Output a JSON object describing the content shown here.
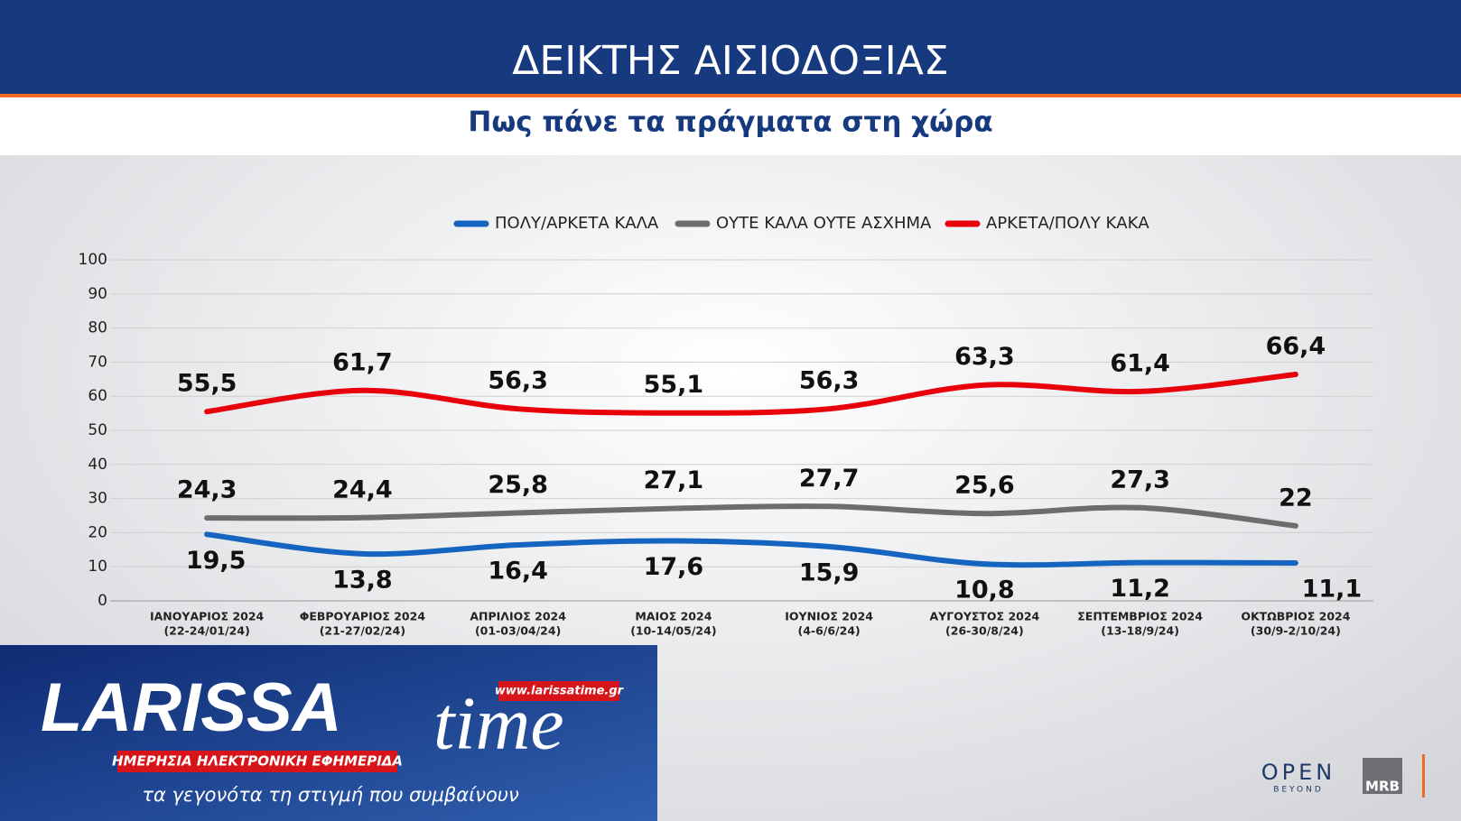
{
  "chart_data": {
    "type": "line",
    "title": "ΔΕΙΚΤΗΣ ΑΙΣΙΟΔΟΞΙΑΣ",
    "subtitle": "Πως πάνε τα πράγματα στη χώρα",
    "categories": [
      "ΙΑΝΟΥΑΡΙΟΣ 2024",
      "ΦΕΒΡΟΥΑΡΙΟΣ 2024",
      "ΑΠΡΙΛΙΟΣ 2024",
      "ΜΑΙΟΣ 2024",
      "ΙΟΥΝΙΟΣ 2024",
      "ΑΥΓΟΥΣΤΟΣ 2024",
      "ΣΕΠΤΕΜΒΡΙΟΣ 2024",
      "ΟΚΤΩΒΡΙΟΣ 2024"
    ],
    "category_notes": [
      "(22-24/01/24)",
      "(21-27/02/24)",
      "(01-03/04/24)",
      "(10-14/05/24)",
      "(4-6/6/24)",
      "(26-30/8/24)",
      "(13-18/9/24)",
      "(30/9-2/10/24)"
    ],
    "series": [
      {
        "name": "ΠΟΛΥ/ΑΡΚΕΤΑ ΚΑΛΑ",
        "color": "#1565c0",
        "values": [
          19.5,
          13.8,
          16.4,
          17.6,
          15.9,
          10.8,
          11.2,
          11.1
        ],
        "value_labels": [
          "19,5",
          "13,8",
          "16,4",
          "17,6",
          "15,9",
          "10,8",
          "11,2",
          "11,1"
        ]
      },
      {
        "name": "ΟΥΤΕ ΚΑΛΑ ΟΥΤΕ ΑΣΧΗΜΑ",
        "color": "#6d6d6d",
        "values": [
          24.3,
          24.4,
          25.8,
          27.1,
          27.7,
          25.6,
          27.3,
          22
        ],
        "value_labels": [
          "24,3",
          "24,4",
          "25,8",
          "27,1",
          "27,7",
          "25,6",
          "27,3",
          "22"
        ]
      },
      {
        "name": "ΑΡΚΕΤΑ/ΠΟΛΥ ΚΑΚΑ",
        "color": "#e8000b",
        "values": [
          55.5,
          61.7,
          56.3,
          55.1,
          56.3,
          63.3,
          61.4,
          66.4
        ],
        "value_labels": [
          "55,5",
          "61,7",
          "56,3",
          "55,1",
          "56,3",
          "63,3",
          "61,4",
          "66,4"
        ]
      }
    ],
    "ylim": [
      0,
      100
    ],
    "yticks": [
      0,
      10,
      20,
      30,
      40,
      50,
      60,
      70,
      80,
      90,
      100
    ],
    "grid": true,
    "legend": "top"
  },
  "branding": {
    "logo_main": "LARISSA",
    "logo_script": "time",
    "url": "www.larissatime.gr",
    "tagline": "ΗΜΕΡΗΣΙΑ ΗΛΕΚΤΡΟΝΙΚΗ ΕΦΗΜΕΡΙΔΑ",
    "slogan": "τα γεγονότα τη στιγμή που συμβαίνουν",
    "channel": "OPEN",
    "channel_sub": "BEYOND",
    "pollster": "MRB"
  }
}
